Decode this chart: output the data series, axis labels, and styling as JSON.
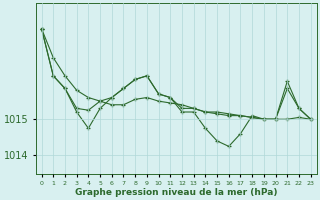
{
  "hours": [
    0,
    1,
    2,
    3,
    4,
    5,
    6,
    7,
    8,
    9,
    10,
    11,
    12,
    13,
    14,
    15,
    16,
    17,
    18,
    19,
    20,
    21,
    22,
    23
  ],
  "line_top": [
    1017.5,
    1016.7,
    1016.2,
    1015.8,
    1015.6,
    1015.5,
    1015.4,
    1015.4,
    1015.55,
    1015.6,
    1015.5,
    1015.45,
    1015.4,
    1015.3,
    1015.2,
    1015.2,
    1015.15,
    1015.1,
    1015.05,
    1015.0,
    1015.0,
    1015.0,
    1015.05,
    1015.0
  ],
  "line_mid": [
    1017.5,
    1016.2,
    1015.85,
    1015.3,
    1015.25,
    1015.5,
    1015.6,
    1015.85,
    1016.1,
    1016.2,
    1015.7,
    1015.6,
    1015.3,
    1015.3,
    1015.2,
    1015.15,
    1015.1,
    1015.1,
    1015.05,
    1015.0,
    1015.0,
    1015.85,
    1015.3,
    1015.0
  ],
  "line_bot": [
    1017.5,
    1016.2,
    1015.85,
    1015.2,
    1014.75,
    1015.3,
    1015.6,
    1015.85,
    1016.1,
    1016.2,
    1015.7,
    1015.6,
    1015.2,
    1015.2,
    1014.75,
    1014.4,
    1014.25,
    1014.6,
    1015.1,
    1015.0,
    1015.0,
    1016.05,
    1015.3,
    1015.0
  ],
  "line_color": "#2d6a2d",
  "bg_color": "#d8f0f0",
  "grid_color": "#b0d8d8",
  "tick_label_color": "#2d6a2d",
  "xlabel": "Graphe pression niveau de la mer (hPa)",
  "yticks": [
    1014,
    1015
  ],
  "ylim": [
    1013.5,
    1018.2
  ],
  "xlim": [
    -0.5,
    23.5
  ],
  "xtick_labels": [
    "0",
    "1",
    "2",
    "3",
    "4",
    "5",
    "6",
    "7",
    "8",
    "9",
    "10",
    "11",
    "12",
    "13",
    "14",
    "15",
    "16",
    "17",
    "18",
    "19",
    "20",
    "21",
    "22",
    "23"
  ]
}
